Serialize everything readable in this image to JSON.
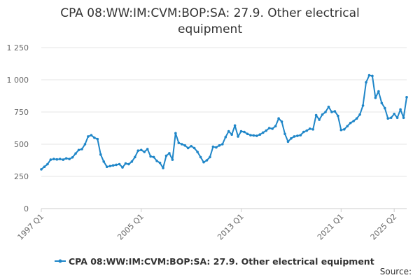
{
  "chart_data": {
    "type": "line",
    "title": "CPA 08:WW:IM:CVM:BOP:SA: 27.9. Other electrical equipment",
    "xlabel": "",
    "ylabel": "",
    "x_tick_labels": [
      "1997 Q1",
      "2005 Q1",
      "2013 Q1",
      "2021 Q1",
      "2025 Q2"
    ],
    "y_ticks": [
      0,
      250,
      500,
      750,
      1000,
      1250
    ],
    "y_tick_labels": [
      "0",
      "250",
      "500",
      "750",
      "1 000",
      "1 250"
    ],
    "ylim": [
      0,
      1250
    ],
    "grid": true,
    "legend_position": "bottom",
    "series": [
      {
        "name": "CPA 08:WW:IM:CVM:BOP:SA: 27.9. Other electrical equipment",
        "color": "#1f86c8",
        "x_start": "1997 Q1",
        "x_end": "2025 Q2",
        "values": [
          305,
          325,
          345,
          380,
          385,
          382,
          385,
          380,
          390,
          385,
          398,
          428,
          455,
          462,
          500,
          560,
          570,
          550,
          540,
          420,
          365,
          325,
          330,
          335,
          340,
          345,
          320,
          350,
          345,
          365,
          400,
          450,
          455,
          440,
          462,
          405,
          400,
          370,
          355,
          315,
          410,
          430,
          380,
          585,
          510,
          500,
          490,
          470,
          485,
          470,
          440,
          400,
          360,
          375,
          400,
          480,
          475,
          490,
          500,
          555,
          600,
          575,
          645,
          560,
          600,
          595,
          580,
          570,
          568,
          565,
          575,
          590,
          605,
          625,
          620,
          640,
          700,
          675,
          580,
          520,
          545,
          560,
          565,
          570,
          595,
          605,
          620,
          615,
          725,
          690,
          730,
          750,
          790,
          750,
          755,
          720,
          610,
          615,
          640,
          665,
          680,
          700,
          730,
          800,
          980,
          1035,
          1030,
          860,
          910,
          820,
          780,
          700,
          705,
          735,
          705,
          770,
          705,
          865
        ]
      }
    ]
  },
  "legend": {
    "label": "CPA 08:WW:IM:CVM:BOP:SA: 27.9. Other electrical equipment"
  },
  "footer": {
    "source_label": "Source:"
  }
}
